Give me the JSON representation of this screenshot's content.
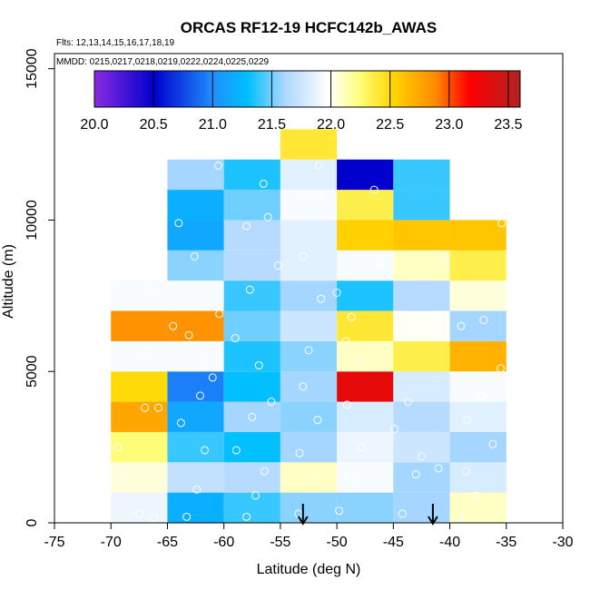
{
  "chart_data": {
    "type": "heatmap",
    "title": "ORCAS RF12-19 HCFC142b_AWAS",
    "flights_note": "Flts: 12,13,14,15,16,17,18,19",
    "dates_note": "MMDD: 0215,0217,0218,0219,0222,0224,0225,0229",
    "xlabel": "Latitude (deg N)",
    "ylabel": "Altitude (m)",
    "xlim": [
      -75,
      -30
    ],
    "ylim": [
      0,
      15500
    ],
    "x_ticks": [
      -75,
      -70,
      -65,
      -60,
      -55,
      -50,
      -45,
      -40,
      -35,
      -30
    ],
    "x_tick_labels": [
      "-75",
      "-70",
      "-65",
      "-60",
      "-55",
      "-50",
      "-45",
      "-40",
      "-35",
      "-30"
    ],
    "y_ticks": [
      0,
      5000,
      10000,
      15000
    ],
    "y_tick_labels": [
      "0",
      "5000",
      "10000",
      "15000"
    ],
    "colorbar": {
      "min": 20.0,
      "max": 23.6,
      "ticks": [
        20.0,
        20.5,
        21.0,
        21.5,
        22.0,
        22.5,
        23.0,
        23.5
      ],
      "tick_labels": [
        "20.0",
        "20.5",
        "21.0",
        "21.5",
        "22.0",
        "22.5",
        "23.0",
        "23.5"
      ],
      "colors": [
        "#8a2be2",
        "#0000cd",
        "#1e90ff",
        "#00bfff",
        "#b0d8ff",
        "#ffffff",
        "#ffff80",
        "#ffd700",
        "#ff8c00",
        "#ff0000",
        "#b22222"
      ],
      "stops": [
        0.0,
        0.14,
        0.28,
        0.36,
        0.45,
        0.55,
        0.62,
        0.7,
        0.8,
        0.88,
        1.0
      ]
    },
    "bin_width_lat": 5,
    "bin_height_alt": 1000,
    "cells": [
      {
        "lat0": -70,
        "alt0": 0,
        "v": 21.9
      },
      {
        "lat0": -70,
        "alt0": 1000,
        "v": 22.05
      },
      {
        "lat0": -70,
        "alt0": 2000,
        "v": 22.25
      },
      {
        "lat0": -70,
        "alt0": 3000,
        "v": 22.75
      },
      {
        "lat0": -70,
        "alt0": 4000,
        "v": 22.5
      },
      {
        "lat0": -70,
        "alt0": 5000,
        "v": 21.95
      },
      {
        "lat0": -70,
        "alt0": 6000,
        "v": 22.85
      },
      {
        "lat0": -70,
        "alt0": 7000,
        "v": 21.95
      },
      {
        "lat0": -65,
        "alt0": 0,
        "v": 21.2
      },
      {
        "lat0": -65,
        "alt0": 1000,
        "v": 21.7
      },
      {
        "lat0": -65,
        "alt0": 2000,
        "v": 21.4
      },
      {
        "lat0": -65,
        "alt0": 3000,
        "v": 21.15
      },
      {
        "lat0": -65,
        "alt0": 4000,
        "v": 20.95
      },
      {
        "lat0": -65,
        "alt0": 5000,
        "v": 21.95
      },
      {
        "lat0": -65,
        "alt0": 6000,
        "v": 22.85
      },
      {
        "lat0": -65,
        "alt0": 7000,
        "v": 21.95
      },
      {
        "lat0": -65,
        "alt0": 8000,
        "v": 21.55
      },
      {
        "lat0": -65,
        "alt0": 9000,
        "v": 21.15
      },
      {
        "lat0": -65,
        "alt0": 10000,
        "v": 21.2
      },
      {
        "lat0": -65,
        "alt0": 11000,
        "v": 21.6
      },
      {
        "lat0": -60,
        "alt0": 0,
        "v": 21.4
      },
      {
        "lat0": -60,
        "alt0": 1000,
        "v": 21.65
      },
      {
        "lat0": -60,
        "alt0": 2000,
        "v": 21.3
      },
      {
        "lat0": -60,
        "alt0": 3000,
        "v": 21.6
      },
      {
        "lat0": -60,
        "alt0": 4000,
        "v": 21.3
      },
      {
        "lat0": -60,
        "alt0": 5000,
        "v": 21.35
      },
      {
        "lat0": -60,
        "alt0": 6000,
        "v": 21.5
      },
      {
        "lat0": -60,
        "alt0": 7000,
        "v": 21.4
      },
      {
        "lat0": -60,
        "alt0": 8000,
        "v": 21.65
      },
      {
        "lat0": -60,
        "alt0": 9000,
        "v": 21.65
      },
      {
        "lat0": -60,
        "alt0": 10000,
        "v": 21.5
      },
      {
        "lat0": -60,
        "alt0": 11000,
        "v": 21.35
      },
      {
        "lat0": -55,
        "alt0": 0,
        "v": 21.55
      },
      {
        "lat0": -55,
        "alt0": 1000,
        "v": 22.1
      },
      {
        "lat0": -55,
        "alt0": 2000,
        "v": 21.6
      },
      {
        "lat0": -55,
        "alt0": 3000,
        "v": 21.55
      },
      {
        "lat0": -55,
        "alt0": 4000,
        "v": 21.6
      },
      {
        "lat0": -55,
        "alt0": 5000,
        "v": 21.55
      },
      {
        "lat0": -55,
        "alt0": 6000,
        "v": 21.75
      },
      {
        "lat0": -55,
        "alt0": 7000,
        "v": 21.6
      },
      {
        "lat0": -55,
        "alt0": 8000,
        "v": 21.85
      },
      {
        "lat0": -55,
        "alt0": 9000,
        "v": 21.85
      },
      {
        "lat0": -55,
        "alt0": 10000,
        "v": 21.95
      },
      {
        "lat0": -55,
        "alt0": 11000,
        "v": 21.85
      },
      {
        "lat0": -55,
        "alt0": 12000,
        "v": 22.4
      },
      {
        "lat0": -50,
        "alt0": 0,
        "v": 21.55
      },
      {
        "lat0": -50,
        "alt0": 1000,
        "v": 21.95
      },
      {
        "lat0": -50,
        "alt0": 2000,
        "v": 21.9
      },
      {
        "lat0": -50,
        "alt0": 3000,
        "v": 21.8
      },
      {
        "lat0": -50,
        "alt0": 4000,
        "v": 23.3
      },
      {
        "lat0": -50,
        "alt0": 5000,
        "v": 22.1
      },
      {
        "lat0": -50,
        "alt0": 6000,
        "v": 22.4
      },
      {
        "lat0": -50,
        "alt0": 7000,
        "v": 21.35
      },
      {
        "lat0": -50,
        "alt0": 8000,
        "v": 21.95
      },
      {
        "lat0": -50,
        "alt0": 9000,
        "v": 22.55
      },
      {
        "lat0": -50,
        "alt0": 10000,
        "v": 22.35
      },
      {
        "lat0": -50,
        "alt0": 11000,
        "v": 20.5
      },
      {
        "lat0": -45,
        "alt0": 0,
        "v": 21.6
      },
      {
        "lat0": -45,
        "alt0": 1000,
        "v": 21.6
      },
      {
        "lat0": -45,
        "alt0": 2000,
        "v": 21.75
      },
      {
        "lat0": -45,
        "alt0": 3000,
        "v": 21.65
      },
      {
        "lat0": -45,
        "alt0": 4000,
        "v": 21.8
      },
      {
        "lat0": -45,
        "alt0": 5000,
        "v": 22.35
      },
      {
        "lat0": -45,
        "alt0": 6000,
        "v": 22.0
      },
      {
        "lat0": -45,
        "alt0": 7000,
        "v": 21.65
      },
      {
        "lat0": -45,
        "alt0": 8000,
        "v": 22.1
      },
      {
        "lat0": -45,
        "alt0": 9000,
        "v": 22.6
      },
      {
        "lat0": -45,
        "alt0": 10000,
        "v": 21.4
      },
      {
        "lat0": -45,
        "alt0": 11000,
        "v": 21.4
      },
      {
        "lat0": -40,
        "alt0": 0,
        "v": 22.1
      },
      {
        "lat0": -40,
        "alt0": 1000,
        "v": 21.8
      },
      {
        "lat0": -40,
        "alt0": 2000,
        "v": 21.6
      },
      {
        "lat0": -40,
        "alt0": 3000,
        "v": 21.85
      },
      {
        "lat0": -40,
        "alt0": 4000,
        "v": 21.95
      },
      {
        "lat0": -40,
        "alt0": 5000,
        "v": 22.7
      },
      {
        "lat0": -40,
        "alt0": 6000,
        "v": 21.6
      },
      {
        "lat0": -40,
        "alt0": 7000,
        "v": 22.05
      },
      {
        "lat0": -40,
        "alt0": 8000,
        "v": 22.35
      },
      {
        "lat0": -40,
        "alt0": 9000,
        "v": 22.6
      }
    ],
    "sample_points": [
      [
        -67.5,
        300
      ],
      [
        -66.2,
        150
      ],
      [
        -68.9,
        1500
      ],
      [
        -69.4,
        2500
      ],
      [
        -67.0,
        3800
      ],
      [
        -65.8,
        3800
      ],
      [
        -67.2,
        5600
      ],
      [
        -64.5,
        6500
      ],
      [
        -66.5,
        7600
      ],
      [
        -63.3,
        200
      ],
      [
        -62.4,
        1100
      ],
      [
        -61.7,
        2400
      ],
      [
        -63.8,
        3300
      ],
      [
        -62.1,
        4200
      ],
      [
        -61.0,
        4800
      ],
      [
        -61.8,
        5400
      ],
      [
        -63.1,
        6200
      ],
      [
        -60.4,
        6900
      ],
      [
        -62.6,
        8800
      ],
      [
        -64.0,
        9900
      ],
      [
        -60.5,
        11800
      ],
      [
        -58.0,
        200
      ],
      [
        -57.2,
        900
      ],
      [
        -56.4,
        1700
      ],
      [
        -58.9,
        2400
      ],
      [
        -57.5,
        3500
      ],
      [
        -55.8,
        4000
      ],
      [
        -56.9,
        5200
      ],
      [
        -59.0,
        6100
      ],
      [
        -57.7,
        7700
      ],
      [
        -55.2,
        8500
      ],
      [
        -56.1,
        10100
      ],
      [
        -58.0,
        9800
      ],
      [
        -56.5,
        11200
      ],
      [
        -53.4,
        300
      ],
      [
        -52.1,
        1500
      ],
      [
        -53.3,
        2300
      ],
      [
        -51.7,
        3400
      ],
      [
        -53.0,
        4500
      ],
      [
        -52.5,
        5700
      ],
      [
        -51.4,
        7400
      ],
      [
        -53.0,
        8800
      ],
      [
        -51.6,
        11800
      ],
      [
        -49.8,
        400
      ],
      [
        -48.4,
        1500
      ],
      [
        -47.8,
        2500
      ],
      [
        -49.1,
        3900
      ],
      [
        -48.0,
        5300
      ],
      [
        -49.2,
        6000
      ],
      [
        -48.7,
        6800
      ],
      [
        -50.0,
        7600
      ],
      [
        -46.1,
        8600
      ],
      [
        -46.7,
        11000
      ],
      [
        -44.2,
        300
      ],
      [
        -43.0,
        1600
      ],
      [
        -42.5,
        2200
      ],
      [
        -44.9,
        3100
      ],
      [
        -43.7,
        4000
      ],
      [
        -42.1,
        6400
      ],
      [
        -41.0,
        1800
      ],
      [
        -39.0,
        200
      ],
      [
        -37.7,
        900
      ],
      [
        -38.6,
        1700
      ],
      [
        -36.2,
        2600
      ],
      [
        -38.5,
        3400
      ],
      [
        -37.2,
        4200
      ],
      [
        -35.5,
        5100
      ],
      [
        -39.0,
        6500
      ],
      [
        -37.0,
        6700
      ],
      [
        -40.5,
        8700
      ],
      [
        -35.4,
        9900
      ]
    ],
    "arrows": [
      {
        "lat": -53.0,
        "label": "down-arrow"
      },
      {
        "lat": -41.5,
        "label": "down-arrow"
      }
    ]
  }
}
